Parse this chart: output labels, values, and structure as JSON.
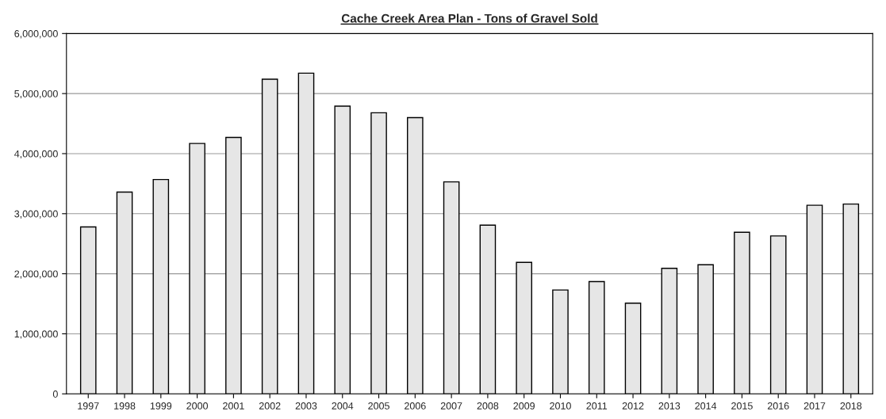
{
  "chart_data": {
    "type": "bar",
    "title": "Cache Creek Area Plan - Tons of Gravel Sold",
    "categories": [
      "1997",
      "1998",
      "1999",
      "2000",
      "2001",
      "2002",
      "2003",
      "2004",
      "2005",
      "2006",
      "2007",
      "2008",
      "2009",
      "2010",
      "2011",
      "2012",
      "2013",
      "2014",
      "2015",
      "2016",
      "2017",
      "2018"
    ],
    "values": [
      2780000,
      3360000,
      3570000,
      4170000,
      4270000,
      5240000,
      5340000,
      4790000,
      4680000,
      4600000,
      3530000,
      2810000,
      2190000,
      1730000,
      1870000,
      1510000,
      2090000,
      2150000,
      2690000,
      2630000,
      3140000,
      3160000
    ],
    "color": "#e6e6e6",
    "ylim": [
      0,
      6000000
    ],
    "yticks": [
      0,
      {
        "value": 1000000,
        "label": "1,000,000"
      },
      {
        "value": 2000000,
        "label": "2,000,000"
      },
      {
        "value": 3000000,
        "label": "3,000,000"
      },
      {
        "value": 4000000,
        "label": "4,000,000"
      },
      {
        "value": 5000000,
        "label": "5,000,000"
      },
      {
        "value": 6000000,
        "label": "6,000,000"
      }
    ],
    "grid": "y"
  }
}
